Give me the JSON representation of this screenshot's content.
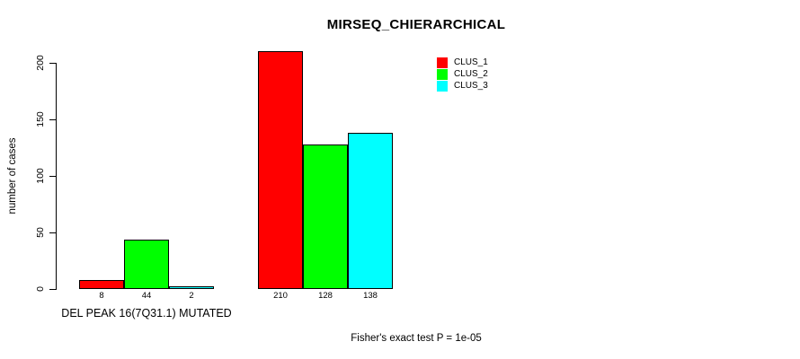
{
  "title": "MIRSEQ_CHIERARCHICAL",
  "footnote": "Fisher's exact test P = 1e-05",
  "chart_data": {
    "type": "bar",
    "title": "MIRSEQ_CHIERARCHICAL",
    "ylabel": "number of cases",
    "xlabel": "",
    "categories": [
      "DEL PEAK 16(7Q31.1) MUTATED",
      ""
    ],
    "series": [
      {
        "name": "CLUS_1",
        "color": "#ff0000",
        "values": [
          8,
          210
        ]
      },
      {
        "name": "CLUS_2",
        "color": "#00ff00",
        "values": [
          44,
          128
        ]
      },
      {
        "name": "CLUS_3",
        "color": "#00ffff",
        "values": [
          2,
          138
        ]
      }
    ],
    "yticks": [
      0,
      50,
      100,
      150,
      200
    ],
    "ylim": [
      0,
      210
    ],
    "grid": false,
    "legend_position": "top-right",
    "annotation": "Fisher's exact test P = 1e-05"
  }
}
